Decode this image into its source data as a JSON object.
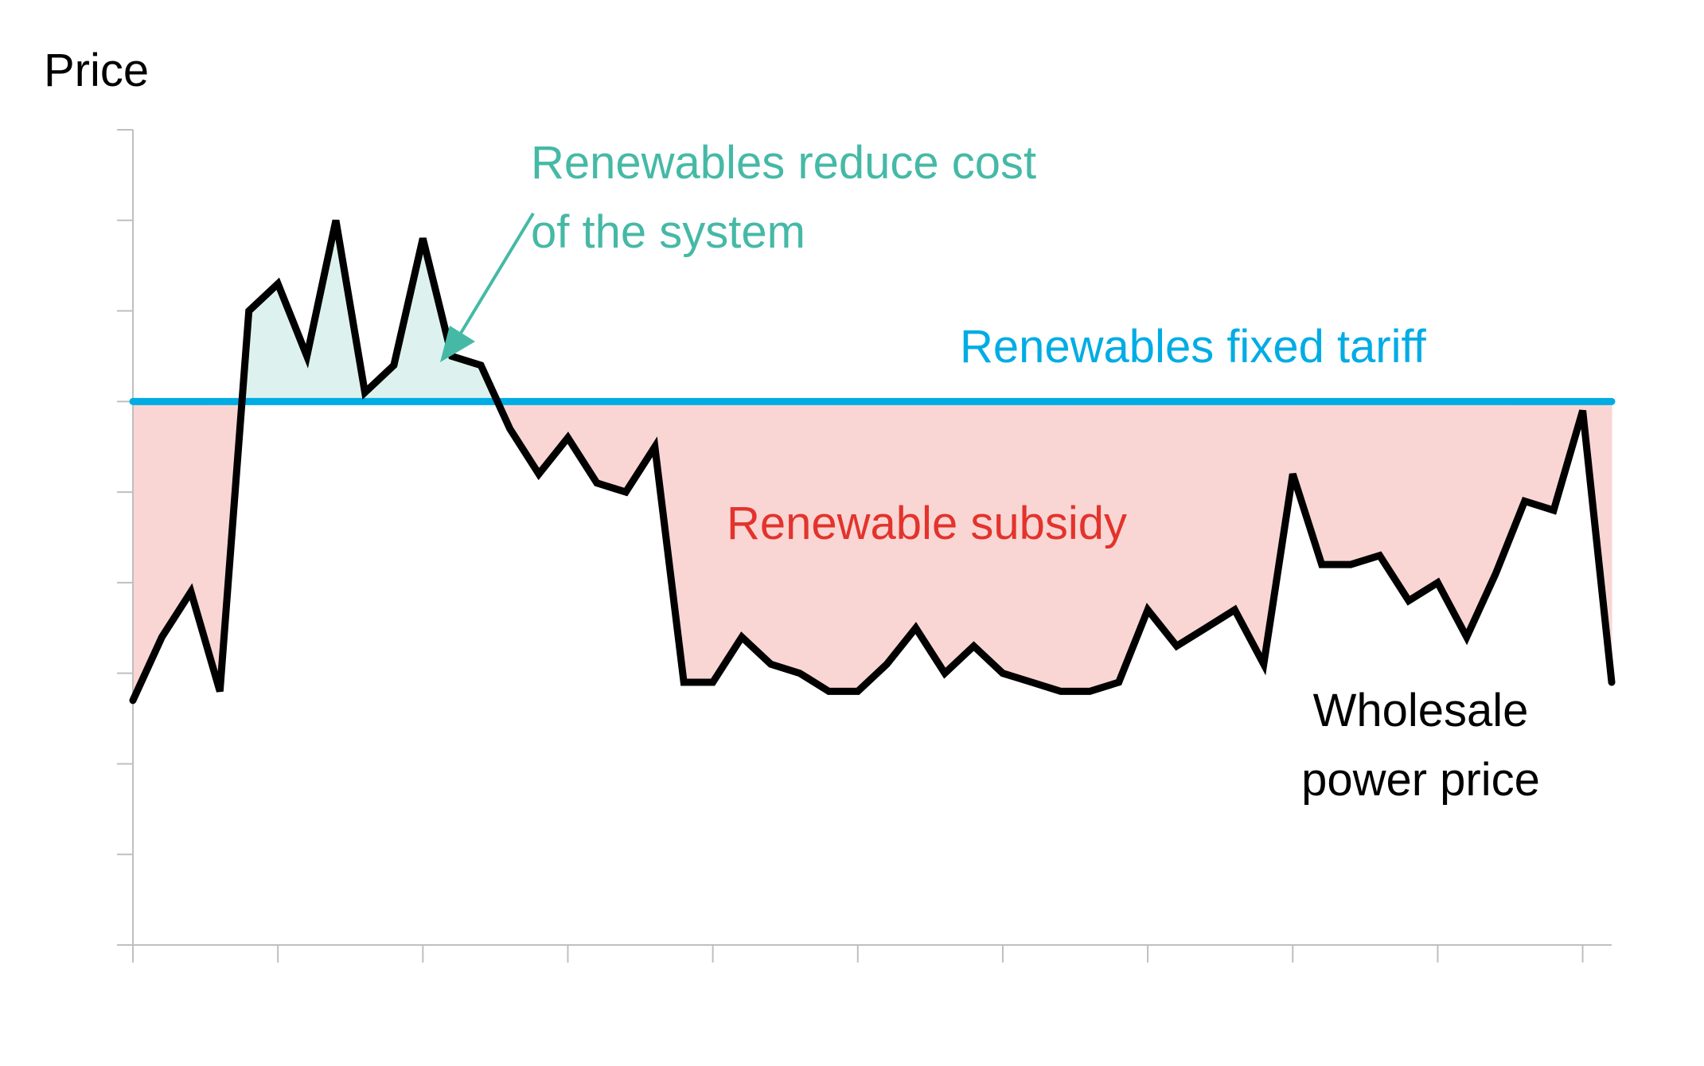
{
  "chart_data": {
    "type": "line",
    "ylabel": "Price",
    "xlabel": "",
    "title": "",
    "ylim": [
      0,
      9
    ],
    "xlim": [
      0,
      51
    ],
    "y_ticks": [
      0,
      1,
      2,
      3,
      4,
      5,
      6,
      7,
      8,
      9
    ],
    "x_ticks": [
      0,
      5,
      10,
      15,
      20,
      25,
      30,
      35,
      40,
      45,
      50
    ],
    "grid": false,
    "series": [
      {
        "name": "Wholesale power price",
        "color": "#000000",
        "x": [
          0,
          1,
          2,
          3,
          4,
          5,
          6,
          7,
          8,
          9,
          10,
          11,
          12,
          13,
          14,
          15,
          16,
          17,
          18,
          19,
          20,
          21,
          22,
          23,
          24,
          25,
          26,
          27,
          28,
          29,
          30,
          31,
          32,
          33,
          34,
          35,
          36,
          37,
          38,
          39,
          40,
          41,
          42,
          43,
          44,
          45,
          46,
          47,
          48,
          49,
          50,
          51
        ],
        "y": [
          2.7,
          3.4,
          3.9,
          2.8,
          7.0,
          7.3,
          6.5,
          8.0,
          6.1,
          6.4,
          7.8,
          6.5,
          6.4,
          5.7,
          5.2,
          5.6,
          5.1,
          5.0,
          5.5,
          2.9,
          2.9,
          3.4,
          3.1,
          3.0,
          2.8,
          2.8,
          3.1,
          3.5,
          3.0,
          3.3,
          3.0,
          2.9,
          2.8,
          2.8,
          2.9,
          3.7,
          3.3,
          3.5,
          3.7,
          3.1,
          5.2,
          4.2,
          4.2,
          4.3,
          3.8,
          4.0,
          3.4,
          4.1,
          4.9,
          4.8,
          5.9,
          2.9
        ]
      },
      {
        "name": "Renewables fixed tariff",
        "color": "#00ACE4",
        "x": [
          0,
          51
        ],
        "y": [
          6.0,
          6.0
        ]
      }
    ],
    "annotations": [
      {
        "text_lines": [
          "Renewables reduce cost",
          "of the system"
        ],
        "color": "#45B9A6",
        "fill": "#DDF2EE"
      },
      {
        "text_lines": [
          "Renewables fixed tariff"
        ],
        "color": "#00ACE4"
      },
      {
        "text_lines": [
          "Renewable subsidy"
        ],
        "color": "#E3332C",
        "fill": "#F9D6D3"
      },
      {
        "text_lines": [
          "Wholesale",
          "power price"
        ],
        "color": "#000000"
      }
    ]
  }
}
